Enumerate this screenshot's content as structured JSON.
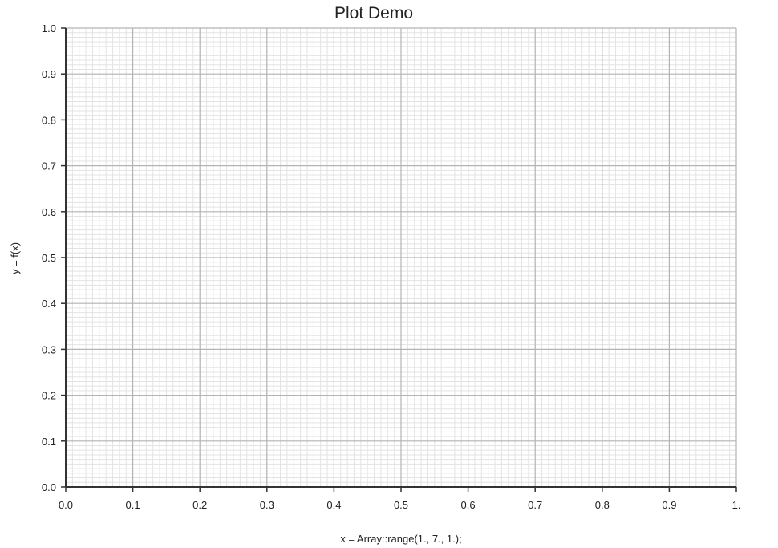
{
  "chart_data": {
    "type": "line",
    "title": "Plot Demo",
    "xlabel": "x = Array::range(1., 7., 1.);",
    "ylabel": "y = f(x)",
    "xlim": [
      0,
      1
    ],
    "ylim": [
      0,
      1
    ],
    "x_ticks": [
      "0.0",
      "0.1",
      "0.2",
      "0.3",
      "0.4",
      "0.5",
      "0.6",
      "0.7",
      "0.8",
      "0.9",
      "1."
    ],
    "y_ticks": [
      "0.0",
      "0.1",
      "0.2",
      "0.3",
      "0.4",
      "0.5",
      "0.6",
      "0.7",
      "0.8",
      "0.9",
      "1.0"
    ],
    "series": [],
    "grid": true,
    "minor_grid": true,
    "colors": {
      "major_grid": "#b3b3b3",
      "minor_grid": "#e3e3e3",
      "axis": "#333333",
      "text": "#222222"
    }
  }
}
